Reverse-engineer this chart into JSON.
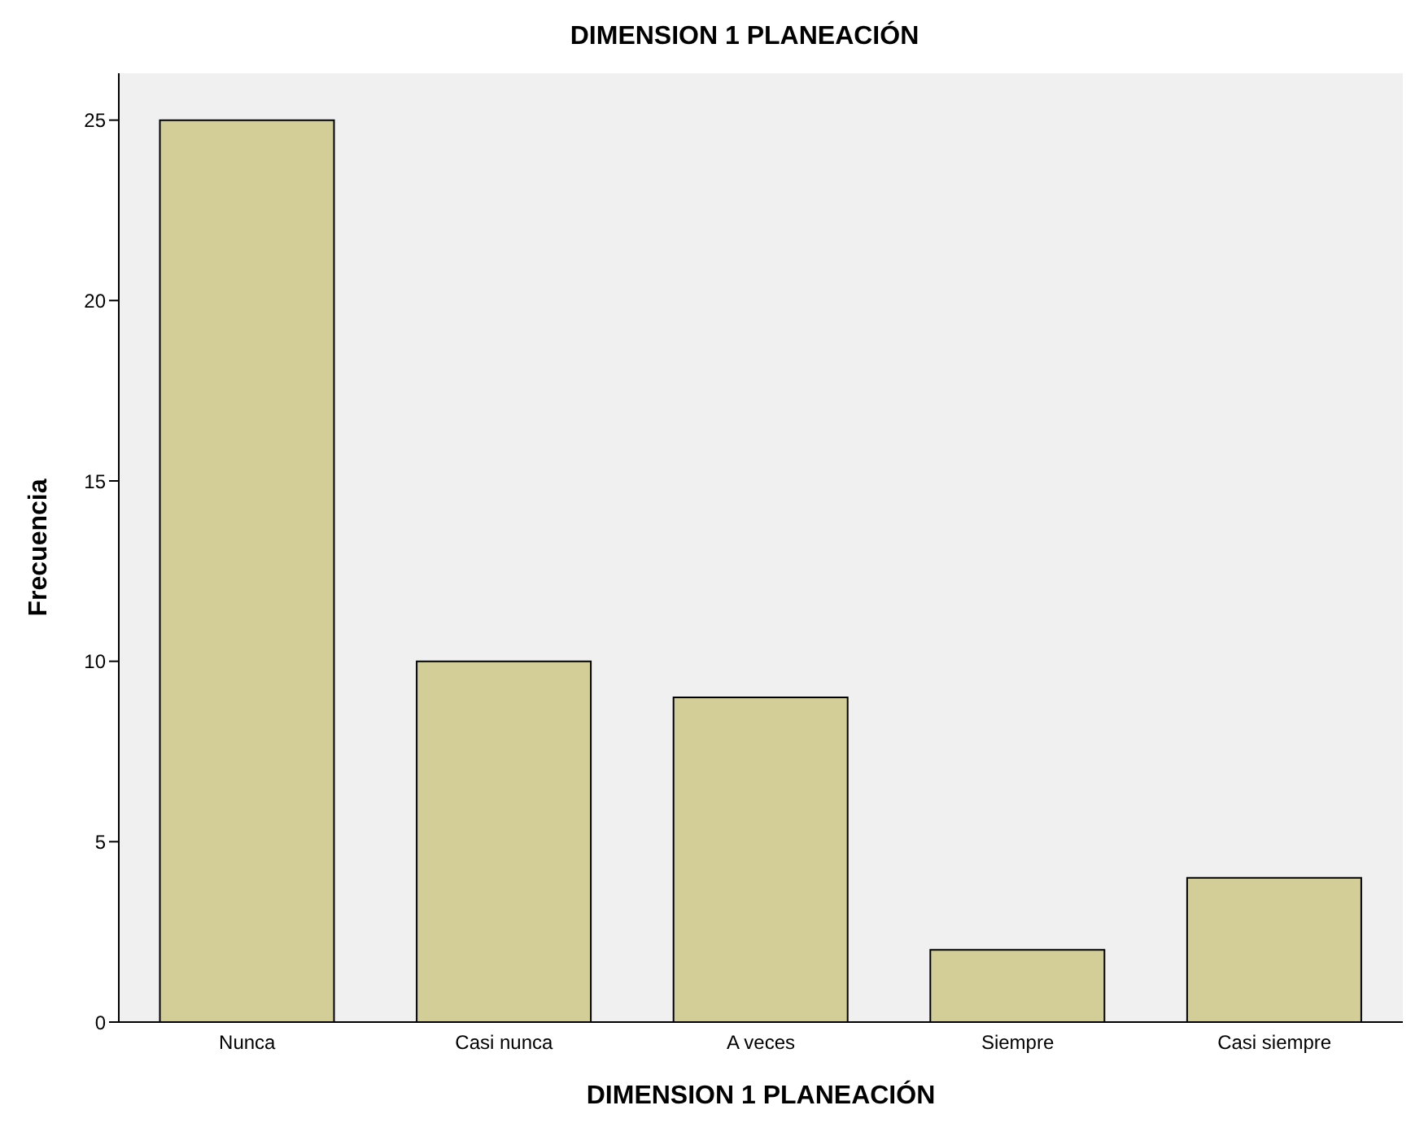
{
  "chart_data": {
    "type": "bar",
    "title": "DIMENSION 1 PLANEACIÓN",
    "xlabel": "DIMENSION 1 PLANEACIÓN",
    "ylabel": "Frecuencia",
    "categories": [
      "Nunca",
      "Casi nunca",
      "A veces",
      "Siempre",
      "Casi siempre"
    ],
    "values": [
      25,
      10,
      9,
      2,
      4
    ],
    "color": "#d3ce97",
    "ylim": [
      0,
      26.3
    ],
    "yticks": [
      0,
      5,
      10,
      15,
      20,
      25
    ]
  }
}
